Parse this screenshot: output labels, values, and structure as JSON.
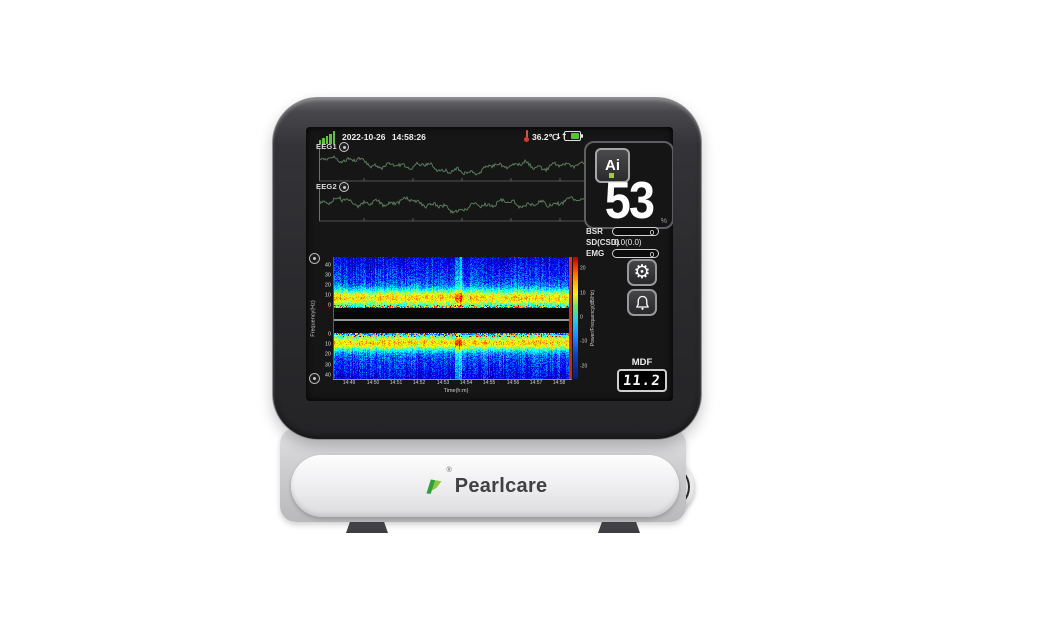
{
  "status_bar": {
    "datetime": "2022-10-26 14:58:26",
    "temperature": "36.2℃",
    "transfer_arrows": "↓↑"
  },
  "eeg": {
    "ch1_label": "EEG1",
    "ch2_label": "EEG2"
  },
  "index_panel": {
    "ai_label": "Ai",
    "value": "53",
    "unit": "%"
  },
  "metrics": {
    "bsr_label": "BSR",
    "bsr_value": "0",
    "sd_label": "SD(CSD)",
    "sd_value": "0.0(0.0)",
    "emg_label": "EMG",
    "emg_value": "0"
  },
  "mdf": {
    "label": "MDF",
    "value": "11.2"
  },
  "front_panel": {
    "brand": "Pearlcare",
    "reg": "®"
  },
  "colors": {
    "signal_green": "#5ec43e",
    "battery_green": "#5bc236",
    "thermometer_red": "#d93a26",
    "waveform_green": "#5f8160",
    "knob_blue": "#2b92dc",
    "power_green": "#76b82a",
    "ai_dot_green": "#9ccb3b"
  },
  "chart_data": [
    {
      "type": "line",
      "title": "EEG1 raw waveform",
      "description": "continuous noise-like EEG trace, dim green on black",
      "color": "#5f8160"
    },
    {
      "type": "line",
      "title": "EEG2 raw waveform",
      "description": "continuous noise-like EEG trace, dim green on black",
      "color": "#5f8160"
    },
    {
      "type": "heatmap",
      "title": "Dual mirrored EEG density spectral array",
      "xlabel": "Time(h:m)",
      "ylabel": "Frequency(Hz)",
      "x_ticks": [
        "14:49",
        "14:50",
        "14:51",
        "14:52",
        "14:53",
        "14:54",
        "14:55",
        "14:56",
        "14:57",
        "14:58"
      ],
      "y_ticks_top": [
        "40",
        "30",
        "20",
        "10",
        "0"
      ],
      "y_ticks_bottom": [
        "0",
        "10",
        "20",
        "30",
        "40"
      ],
      "colorbar_label": "Power/Frequency(dB/Hz)",
      "colorbar_ticks": [
        "20",
        "10",
        "0",
        "-10",
        "-20"
      ],
      "colorbar_range": [
        25,
        -25
      ],
      "description": "jet colormap; blue background, high-power yellow/orange band at ~5-12 Hz with red speckles near 0-3 Hz in both mirrored halves; bright red leading-edge column at right"
    }
  ]
}
